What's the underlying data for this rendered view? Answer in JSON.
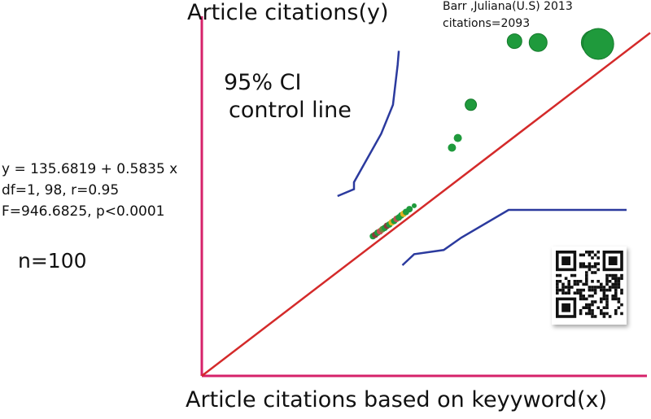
{
  "chart_data": {
    "type": "scatter",
    "xlabel": "Article citations based on keyyword(x)",
    "ylabel": "Article citations(y)",
    "annotation_lines": [
      "Barr ,Juliana(U.S) 2013",
      "citations=2093"
    ],
    "ci_label_lines": [
      "95% CI",
      "control line"
    ],
    "equation_lines": [
      "y = 135.6819 + 0.5835 x",
      "df=1, 98, r=0.95",
      "F=946.6825, p<0.0001"
    ],
    "n_label": "n=100",
    "axis_color": "#d6226a",
    "regression_color": "#d42a2a",
    "ci_color": "#2b3a9e",
    "point_color": "#1f9a3c",
    "regression_line": [
      [
        0,
        0
      ],
      [
        3800,
        2480
      ]
    ],
    "ci_upper": [
      [
        1150,
        1300
      ],
      [
        1290,
        1350
      ],
      [
        1290,
        1400
      ],
      [
        1520,
        1750
      ],
      [
        1620,
        1960
      ],
      [
        1660,
        2250
      ],
      [
        1670,
        2350
      ]
    ],
    "ci_lower": [
      [
        1700,
        800
      ],
      [
        1800,
        880
      ],
      [
        2050,
        910
      ],
      [
        2200,
        1000
      ],
      [
        2600,
        1200
      ],
      [
        3600,
        1200
      ]
    ],
    "points": [
      {
        "x": 1450,
        "y": 1010,
        "size": 4,
        "color": "#1f9a3c"
      },
      {
        "x": 1470,
        "y": 1020,
        "size": 4,
        "color": "#8a3a3a"
      },
      {
        "x": 1490,
        "y": 1035,
        "size": 4,
        "color": "#1f9a3c"
      },
      {
        "x": 1510,
        "y": 1045,
        "size": 4,
        "color": "#c05050"
      },
      {
        "x": 1530,
        "y": 1060,
        "size": 4,
        "color": "#6a8a3a"
      },
      {
        "x": 1550,
        "y": 1070,
        "size": 4,
        "color": "#1f9a3c"
      },
      {
        "x": 1570,
        "y": 1085,
        "size": 4,
        "color": "#8a3a3a"
      },
      {
        "x": 1590,
        "y": 1095,
        "size": 4,
        "color": "#1f9a3c"
      },
      {
        "x": 1610,
        "y": 1110,
        "size": 4,
        "color": "#e0b020"
      },
      {
        "x": 1630,
        "y": 1120,
        "size": 4,
        "color": "#1f9a3c"
      },
      {
        "x": 1650,
        "y": 1135,
        "size": 4,
        "color": "#c05050"
      },
      {
        "x": 1670,
        "y": 1145,
        "size": 4,
        "color": "#1f9a3c"
      },
      {
        "x": 1690,
        "y": 1160,
        "size": 4,
        "color": "#1f9a3c"
      },
      {
        "x": 1710,
        "y": 1172,
        "size": 4,
        "color": "#e0b020"
      },
      {
        "x": 1730,
        "y": 1185,
        "size": 4,
        "color": "#1f9a3c"
      },
      {
        "x": 1760,
        "y": 1205,
        "size": 4,
        "color": "#1f9a3c"
      },
      {
        "x": 1800,
        "y": 1230,
        "size": 3,
        "color": "#1f9a3c"
      },
      {
        "x": 2120,
        "y": 1650,
        "size": 5,
        "color": "#1f9a3c"
      },
      {
        "x": 2170,
        "y": 1720,
        "size": 5,
        "color": "#1f9a3c"
      },
      {
        "x": 2280,
        "y": 1960,
        "size": 7,
        "color": "#1f9a3c"
      },
      {
        "x": 2650,
        "y": 2420,
        "size": 9,
        "color": "#1f9a3c"
      },
      {
        "x": 2850,
        "y": 2410,
        "size": 11,
        "color": "#1f9a3c"
      },
      {
        "x": 3320,
        "y": 2410,
        "size": 15,
        "color": "#1f9a3c"
      },
      {
        "x": 3360,
        "y": 2400,
        "size": 19,
        "color": "#1f9a3c"
      }
    ]
  },
  "qr_icon": "qr-code-icon"
}
